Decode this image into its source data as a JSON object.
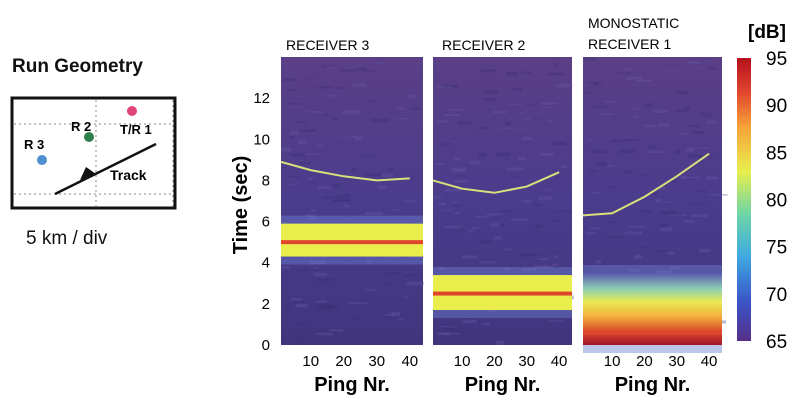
{
  "run_geometry": {
    "title": "Run Geometry",
    "scale_label": "5 km / div",
    "stations": [
      {
        "label": "R 3",
        "color": "#4f8fcf"
      },
      {
        "label": "R 2",
        "color": "#2f7f4f"
      },
      {
        "label": "T/R 1",
        "color": "#e0457a"
      }
    ],
    "track_label": "Track"
  },
  "colorbar": {
    "unit_label": "[dB]",
    "ticks": [
      "95",
      "90",
      "85",
      "80",
      "75",
      "70",
      "65"
    ],
    "range": [
      65,
      95
    ],
    "colors": [
      "#56308a",
      "#3b55c8",
      "#3fa9e0",
      "#6fd6a6",
      "#e9ee4c",
      "#f6a63a",
      "#e0452e",
      "#b5101c"
    ]
  },
  "chart_data": [
    {
      "type": "heatmap",
      "title": "RECEIVER 3",
      "xlabel": "Ping Nr.",
      "ylabel": "Time (sec)",
      "x_ticks": [
        "10",
        "20",
        "30",
        "40"
      ],
      "y_ticks": [
        "0",
        "2",
        "4",
        "6",
        "8",
        "10",
        "12"
      ],
      "xlim": [
        1,
        44
      ],
      "ylim": [
        0,
        14
      ],
      "features": [
        {
          "name": "echo band",
          "t_start": 4.3,
          "t_end": 5.9,
          "level_db": 84
        },
        {
          "name": "direct arrival",
          "t": 5.0,
          "level_db": 92
        },
        {
          "name": "target trace",
          "points": [
            [
              1,
              8.9
            ],
            [
              10,
              8.5
            ],
            [
              20,
              8.2
            ],
            [
              30,
              8.0
            ],
            [
              40,
              8.1
            ]
          ]
        }
      ]
    },
    {
      "type": "heatmap",
      "title": "RECEIVER 2",
      "xlabel": "Ping Nr.",
      "x_ticks": [
        "10",
        "20",
        "30",
        "40"
      ],
      "xlim": [
        1,
        44
      ],
      "ylim": [
        0,
        14
      ],
      "features": [
        {
          "name": "echo band",
          "t_start": 1.7,
          "t_end": 3.4,
          "level_db": 84
        },
        {
          "name": "direct arrival",
          "t": 2.5,
          "level_db": 92
        },
        {
          "name": "target trace",
          "points": [
            [
              1,
              8.0
            ],
            [
              10,
              7.6
            ],
            [
              20,
              7.4
            ],
            [
              30,
              7.7
            ],
            [
              40,
              8.4
            ]
          ]
        }
      ]
    },
    {
      "type": "heatmap",
      "title": "MONOSTATIC RECEIVER 1",
      "xlabel": "Ping Nr.",
      "x_ticks": [
        "10",
        "20",
        "30",
        "40"
      ],
      "xlim": [
        1,
        44
      ],
      "ylim": [
        0,
        14
      ],
      "features": [
        {
          "name": "echo band",
          "t_start": 0.0,
          "t_end": 3.5,
          "level_db": 83
        },
        {
          "name": "direct arrival",
          "t": 0.6,
          "level_db": 92
        },
        {
          "name": "target trace",
          "points": [
            [
              1,
              6.3
            ],
            [
              10,
              6.4
            ],
            [
              20,
              7.2
            ],
            [
              30,
              8.2
            ],
            [
              40,
              9.3
            ]
          ]
        }
      ]
    }
  ]
}
